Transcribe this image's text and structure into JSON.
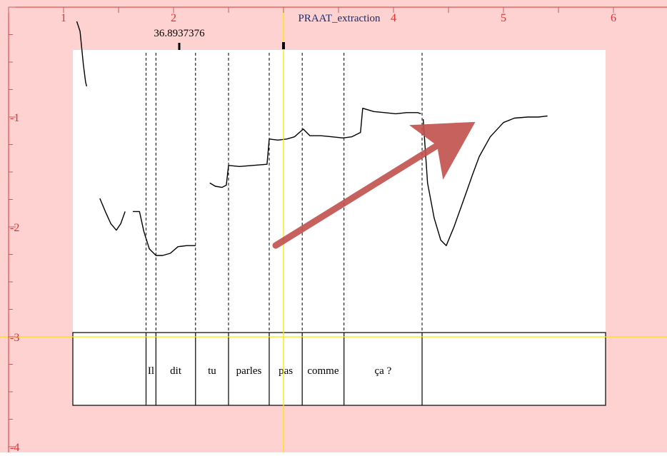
{
  "window": {
    "title": "PRAAT_extraction"
  },
  "cursor_value": "36.8937376",
  "chart_data": {
    "type": "line",
    "title": "PRAAT_extraction",
    "xlabel": "",
    "ylabel": "",
    "xlim": [
      0.5,
      6
    ],
    "ylim": [
      -4,
      0
    ],
    "x_ticks": [
      1,
      2,
      3,
      4,
      5,
      6
    ],
    "x_tick_labels": [
      "1",
      "2",
      "",
      "4",
      "5",
      "6"
    ],
    "y_ticks": [
      -1,
      -2,
      -3,
      -4
    ],
    "y_tick_labels": [
      "-1",
      "-2",
      "-3",
      "-4"
    ],
    "grid": false,
    "cursor_lines": {
      "x": 3.0,
      "y": -3.0
    },
    "pitch_segments": [
      [
        [
          1.12,
          -0.13
        ],
        [
          1.15,
          -0.22
        ],
        [
          1.18,
          -0.52
        ],
        [
          1.2,
          -0.68
        ],
        [
          1.21,
          -0.72
        ]
      ],
      [
        [
          1.33,
          -1.74
        ],
        [
          1.38,
          -1.86
        ],
        [
          1.43,
          -1.97
        ],
        [
          1.48,
          -2.03
        ],
        [
          1.52,
          -1.97
        ],
        [
          1.56,
          -1.86
        ]
      ],
      [
        [
          1.63,
          -1.86
        ],
        [
          1.69,
          -1.86
        ],
        [
          1.73,
          -2.04
        ],
        [
          1.78,
          -2.2
        ],
        [
          1.84,
          -2.26
        ],
        [
          1.9,
          -2.26
        ],
        [
          1.97,
          -2.24
        ],
        [
          2.04,
          -2.18
        ],
        [
          2.12,
          -2.17
        ],
        [
          2.2,
          -2.17
        ]
      ],
      [
        [
          2.33,
          -1.6
        ],
        [
          2.38,
          -1.63
        ],
        [
          2.44,
          -1.64
        ],
        [
          2.48,
          -1.62
        ],
        [
          2.5,
          -1.44
        ],
        [
          2.6,
          -1.45
        ],
        [
          2.72,
          -1.44
        ],
        [
          2.85,
          -1.43
        ],
        [
          2.87,
          -1.2
        ],
        [
          2.95,
          -1.21
        ],
        [
          3.03,
          -1.2
        ],
        [
          3.1,
          -1.18
        ],
        [
          3.18,
          -1.11
        ],
        [
          3.24,
          -1.17
        ],
        [
          3.34,
          -1.17
        ],
        [
          3.44,
          -1.18
        ],
        [
          3.54,
          -1.19
        ],
        [
          3.62,
          -1.18
        ],
        [
          3.7,
          -1.14
        ],
        [
          3.72,
          -0.92
        ],
        [
          3.82,
          -0.95
        ],
        [
          3.92,
          -0.96
        ],
        [
          4.02,
          -0.97
        ],
        [
          4.12,
          -0.96
        ],
        [
          4.22,
          -0.96
        ],
        [
          4.25,
          -0.97
        ]
      ],
      [
        [
          4.27,
          -1.02
        ],
        [
          4.31,
          -1.6
        ],
        [
          4.37,
          -1.92
        ],
        [
          4.43,
          -2.12
        ],
        [
          4.48,
          -2.17
        ],
        [
          4.55,
          -2.0
        ],
        [
          4.65,
          -1.72
        ],
        [
          4.72,
          -1.52
        ],
        [
          4.78,
          -1.36
        ],
        [
          4.88,
          -1.18
        ],
        [
          5.0,
          -1.05
        ],
        [
          5.1,
          -1.01
        ],
        [
          5.22,
          -1.0
        ],
        [
          5.32,
          -1.0
        ],
        [
          5.4,
          -0.99
        ]
      ]
    ],
    "boundaries": [
      1.75,
      1.84,
      2.2,
      2.5,
      2.87,
      3.17,
      3.55,
      4.26
    ],
    "words": [
      {
        "text": "Il",
        "start": 1.75,
        "end": 1.84
      },
      {
        "text": "dit",
        "start": 1.84,
        "end": 2.2
      },
      {
        "text": "tu",
        "start": 2.2,
        "end": 2.5
      },
      {
        "text": "parles",
        "start": 2.5,
        "end": 2.87
      },
      {
        "text": "pas",
        "start": 2.87,
        "end": 3.17
      },
      {
        "text": "comme",
        "start": 3.17,
        "end": 3.55
      },
      {
        "text": "ça ?",
        "start": 3.55,
        "end": 4.26
      }
    ],
    "colors": {
      "frame_bg": "#ffd2d2",
      "tick_labels": "#e03030",
      "cursor": "#ffe600",
      "trend_arrow": "#c0504d",
      "contour": "#000000",
      "title": "#1a2a66"
    }
  }
}
